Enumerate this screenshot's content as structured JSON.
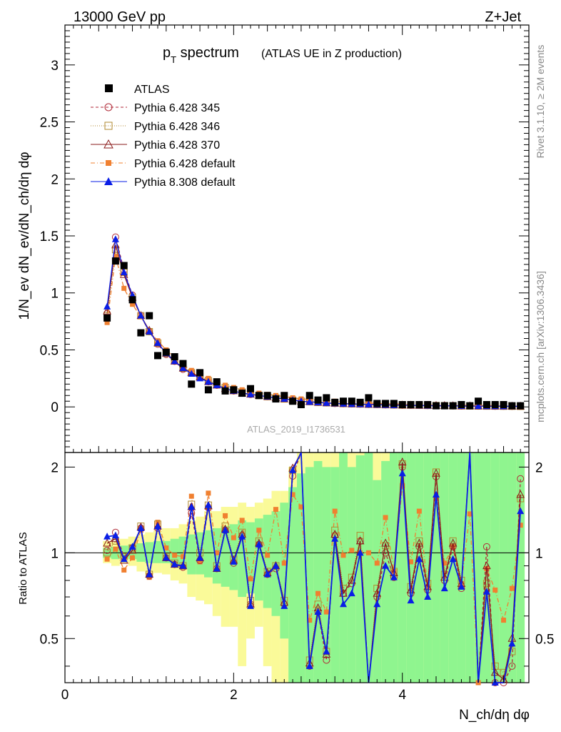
{
  "chart_data": {
    "type": "scatter",
    "title": "p",
    "title_sub": "T",
    "title_rest": " spectrum",
    "subtitle": "(ATLAS UE in Z production)",
    "header_left": "13000 GeV pp",
    "header_right": "Z+Jet",
    "side_label_top": "Rivet 3.1.10, ≥ 2M events",
    "side_label_bottom": "mcplots.cern.ch [arXiv:1306.3436]",
    "analysis_id": "ATLAS_2019_I1736531",
    "ylabel": "1/N_ev dN_ev/dN_ch/dη dφ",
    "ratio_ylabel": "Ratio to ATLAS",
    "xlabel": "N_ch/dη dφ",
    "xlim": [
      0,
      5.5
    ],
    "ylim": [
      -0.4,
      3.35
    ],
    "ratio_ylim": [
      0.35,
      2.25
    ],
    "x_ticks": [
      "0",
      "2",
      "4"
    ],
    "y_ticks": [
      "0",
      "0.5",
      "1",
      "1.5",
      "2",
      "2.5",
      "3"
    ],
    "ratio_ticks": [
      "0.5",
      "1",
      "2"
    ],
    "x": [
      0.5,
      0.6,
      0.7,
      0.8,
      0.9,
      1.0,
      1.1,
      1.2,
      1.3,
      1.4,
      1.5,
      1.6,
      1.7,
      1.8,
      1.9,
      2.0,
      2.1,
      2.2,
      2.3,
      2.4,
      2.5,
      2.6,
      2.7,
      2.8,
      2.9,
      3.0,
      3.1,
      3.2,
      3.3,
      3.4,
      3.5,
      3.6,
      3.7,
      3.8,
      3.9,
      4.0,
      4.1,
      4.2,
      4.3,
      4.4,
      4.5,
      4.6,
      4.7,
      4.8,
      4.9,
      5.0,
      5.1,
      5.2,
      5.3,
      5.4
    ],
    "data": {
      "name": "ATLAS",
      "values": [
        0.78,
        1.28,
        1.24,
        0.94,
        0.65,
        0.8,
        0.45,
        0.48,
        0.44,
        0.38,
        0.2,
        0.3,
        0.15,
        0.22,
        0.14,
        0.15,
        0.12,
        0.16,
        0.1,
        0.1,
        0.07,
        0.1,
        0.05,
        0.02,
        0.1,
        0.06,
        0.08,
        0.04,
        0.05,
        0.05,
        0.04,
        0.08,
        0.03,
        0.03,
        0.03,
        0.02,
        0.02,
        0.02,
        0.02,
        0.01,
        0.01,
        0.01,
        0.02,
        0.01,
        0.05,
        0.02,
        0.02,
        0.02,
        0.01,
        0.01
      ]
    },
    "series": [
      {
        "name": "Pythia 6.428 345",
        "color": "#b02a37",
        "values": [
          0.82,
          1.49,
          1.2,
          0.98,
          0.8,
          0.66,
          0.55,
          0.46,
          0.4,
          0.33,
          0.3,
          0.26,
          0.22,
          0.19,
          0.16,
          0.14,
          0.12,
          0.11,
          0.1,
          0.09,
          0.08,
          0.07,
          0.06,
          0.05,
          0.045,
          0.04,
          0.035,
          0.03,
          0.028,
          0.026,
          0.024,
          0.022,
          0.02,
          0.018,
          0.016,
          0.015,
          0.014,
          0.013,
          0.012,
          0.011,
          0.01,
          0.009,
          0.008,
          0.008,
          0.007,
          0.007,
          0.006,
          0.006,
          0.005,
          0.005
        ]
      },
      {
        "name": "Pythia 6.428 346",
        "color": "#b08a30",
        "values": [
          0.8,
          1.38,
          1.18,
          0.96,
          0.8,
          0.66,
          0.56,
          0.47,
          0.41,
          0.34,
          0.3,
          0.27,
          0.23,
          0.2,
          0.17,
          0.15,
          0.13,
          0.12,
          0.1,
          0.09,
          0.08,
          0.07,
          0.06,
          0.05,
          0.046,
          0.04,
          0.036,
          0.032,
          0.029,
          0.027,
          0.025,
          0.023,
          0.021,
          0.019,
          0.017,
          0.016,
          0.015,
          0.014,
          0.013,
          0.012,
          0.011,
          0.01,
          0.009,
          0.008,
          0.008,
          0.007,
          0.007,
          0.006,
          0.006,
          0.005
        ]
      },
      {
        "name": "Pythia 6.428 370",
        "color": "#8a1a1a",
        "values": [
          0.84,
          1.42,
          1.16,
          0.96,
          0.8,
          0.67,
          0.56,
          0.47,
          0.4,
          0.34,
          0.3,
          0.26,
          0.22,
          0.19,
          0.16,
          0.14,
          0.12,
          0.11,
          0.1,
          0.09,
          0.08,
          0.07,
          0.06,
          0.05,
          0.045,
          0.04,
          0.035,
          0.031,
          0.028,
          0.026,
          0.024,
          0.022,
          0.02,
          0.018,
          0.016,
          0.015,
          0.014,
          0.013,
          0.012,
          0.011,
          0.01,
          0.009,
          0.008,
          0.008,
          0.007,
          0.007,
          0.006,
          0.006,
          0.005,
          0.005
        ]
      },
      {
        "name": "Pythia 6.428 default",
        "color": "#f08030",
        "values": [
          0.74,
          1.32,
          1.04,
          0.9,
          0.79,
          0.66,
          0.58,
          0.5,
          0.43,
          0.37,
          0.32,
          0.28,
          0.25,
          0.22,
          0.19,
          0.17,
          0.15,
          0.13,
          0.12,
          0.11,
          0.1,
          0.09,
          0.08,
          0.07,
          0.065,
          0.06,
          0.055,
          0.05,
          0.045,
          0.04,
          0.037,
          0.034,
          0.031,
          0.028,
          0.026,
          0.024,
          0.022,
          0.02,
          0.019,
          0.018,
          0.017,
          0.016,
          0.015,
          0.014,
          0.013,
          0.012,
          0.012,
          0.011,
          0.011,
          0.01
        ]
      },
      {
        "name": "Pythia 8.308 default",
        "color": "#0a1ee6",
        "values": [
          0.88,
          1.47,
          1.18,
          0.98,
          0.8,
          0.66,
          0.56,
          0.47,
          0.4,
          0.34,
          0.29,
          0.25,
          0.22,
          0.19,
          0.16,
          0.14,
          0.12,
          0.11,
          0.1,
          0.09,
          0.08,
          0.07,
          0.06,
          0.05,
          0.044,
          0.039,
          0.034,
          0.03,
          0.027,
          0.025,
          0.023,
          0.021,
          0.019,
          0.017,
          0.015,
          0.014,
          0.013,
          0.012,
          0.011,
          0.01,
          0.009,
          0.009,
          0.008,
          0.007,
          0.007,
          0.006,
          0.006,
          0.005,
          0.005,
          0.005
        ]
      }
    ],
    "ratio": {
      "series": [
        [
          1.02,
          1.18,
          0.97,
          1.04,
          1.22,
          0.83,
          1.22,
          0.96,
          0.91,
          0.89,
          1.38,
          0.94,
          1.44,
          0.88,
          1.2,
          0.92,
          1.15,
          0.66,
          1.07,
          0.84,
          0.88,
          0.66,
          1.86,
          2.45,
          0.4,
          0.62,
          0.42,
          1.15,
          0.72,
          0.78,
          1.1,
          0.3,
          0.7,
          1.0,
          0.82,
          2.0,
          0.72,
          1.05,
          0.74,
          1.85,
          0.8,
          1.05,
          0.75,
          2.8,
          0.3,
          1.05,
          0.35,
          0.35,
          0.4,
          1.82
        ],
        [
          1.0,
          1.1,
          0.97,
          1.04,
          1.24,
          0.84,
          1.26,
          0.97,
          0.92,
          0.9,
          1.48,
          1.0,
          1.47,
          0.9,
          1.24,
          0.95,
          1.18,
          0.68,
          1.1,
          0.86,
          0.9,
          0.68,
          1.95,
          2.5,
          0.42,
          0.66,
          0.45,
          1.2,
          0.75,
          0.82,
          1.15,
          0.32,
          0.75,
          1.06,
          0.86,
          2.05,
          0.76,
          1.1,
          0.78,
          1.92,
          0.84,
          1.1,
          0.8,
          2.9,
          0.3,
          0.78,
          0.4,
          0.38,
          0.45,
          1.55
        ],
        [
          1.08,
          1.12,
          0.94,
          1.02,
          1.23,
          0.84,
          1.24,
          0.96,
          0.91,
          0.9,
          1.45,
          0.96,
          1.46,
          0.88,
          1.21,
          0.94,
          1.16,
          0.66,
          1.08,
          0.85,
          0.9,
          0.67,
          1.98,
          2.48,
          0.41,
          0.64,
          0.44,
          1.16,
          0.72,
          0.8,
          1.1,
          0.31,
          0.72,
          1.08,
          0.85,
          2.08,
          0.74,
          1.08,
          0.76,
          1.9,
          0.82,
          1.08,
          0.78,
          2.9,
          0.3,
          0.9,
          0.38,
          0.36,
          0.5,
          1.6
        ],
        [
          0.95,
          1.03,
          0.87,
          0.96,
          1.2,
          0.82,
          1.28,
          1.04,
          0.98,
          0.97,
          1.58,
          0.93,
          1.62,
          1.0,
          1.35,
          1.13,
          1.3,
          0.81,
          1.2,
          0.98,
          1.42,
          0.92,
          1.6,
          1.45,
          0.58,
          0.72,
          0.62,
          1.4,
          0.98,
          1.02,
          1.0,
          1.0,
          0.92,
          1.33,
          0.86,
          1.72,
          0.93,
          1.4,
          0.76,
          1.55,
          0.92,
          1.05,
          0.78,
          1.37,
          0.35,
          0.88,
          0.74,
          0.58,
          0.75,
          1.25
        ],
        [
          1.14,
          1.15,
          0.95,
          1.05,
          1.22,
          0.84,
          1.24,
          0.96,
          0.91,
          0.9,
          1.45,
          0.96,
          1.47,
          0.88,
          1.2,
          0.93,
          1.14,
          0.65,
          1.07,
          0.84,
          0.9,
          0.65,
          1.95,
          2.4,
          0.4,
          0.62,
          0.45,
          1.12,
          0.66,
          0.72,
          1.0,
          0.28,
          0.66,
          0.9,
          0.82,
          1.9,
          0.68,
          0.95,
          0.7,
          1.6,
          0.75,
          0.95,
          0.76,
          2.7,
          0.28,
          0.73,
          0.35,
          0.34,
          0.48,
          1.4
        ]
      ],
      "band_yellow": [
        [
          0.92,
          1.1
        ],
        [
          0.9,
          1.1
        ],
        [
          0.92,
          1.12
        ],
        [
          0.9,
          1.14
        ],
        [
          0.86,
          1.16
        ],
        [
          0.84,
          1.18
        ],
        [
          0.85,
          1.2
        ],
        [
          0.84,
          1.22
        ],
        [
          0.8,
          1.22
        ],
        [
          0.78,
          1.26
        ],
        [
          0.7,
          1.3
        ],
        [
          0.68,
          1.34
        ],
        [
          0.66,
          1.4
        ],
        [
          0.6,
          1.4
        ],
        [
          0.55,
          1.45
        ],
        [
          0.55,
          1.45
        ],
        [
          0.4,
          1.5
        ],
        [
          0.5,
          1.45
        ],
        [
          0.55,
          1.5
        ],
        [
          0.4,
          1.55
        ],
        [
          0.35,
          1.65
        ],
        [
          0.35,
          1.65
        ],
        [
          0.35,
          2.0
        ],
        [
          0.35,
          2.3
        ],
        [
          0.35,
          2.3
        ],
        [
          0.35,
          2.3
        ],
        [
          0.35,
          2.3
        ],
        [
          0.35,
          2.3
        ],
        [
          0.35,
          2.3
        ],
        [
          0.35,
          2.3
        ],
        [
          0.35,
          2.3
        ],
        [
          0.35,
          2.3
        ],
        [
          0.35,
          2.3
        ],
        [
          0.35,
          2.3
        ],
        [
          0.35,
          2.3
        ],
        [
          0.35,
          2.3
        ],
        [
          0.35,
          2.3
        ],
        [
          0.35,
          2.3
        ],
        [
          0.35,
          2.3
        ],
        [
          0.35,
          2.3
        ],
        [
          0.35,
          2.3
        ],
        [
          0.35,
          2.3
        ],
        [
          0.35,
          2.3
        ],
        [
          0.35,
          2.3
        ],
        [
          0.35,
          2.3
        ],
        [
          0.35,
          2.3
        ],
        [
          0.35,
          2.3
        ],
        [
          0.35,
          2.3
        ],
        [
          0.35,
          2.3
        ],
        [
          0.35,
          2.3
        ]
      ],
      "band_green": [
        [
          0.96,
          1.04
        ],
        [
          0.95,
          1.05
        ],
        [
          0.96,
          1.06
        ],
        [
          0.95,
          1.07
        ],
        [
          0.93,
          1.08
        ],
        [
          0.92,
          1.09
        ],
        [
          0.92,
          1.1
        ],
        [
          0.92,
          1.1
        ],
        [
          0.9,
          1.12
        ],
        [
          0.88,
          1.14
        ],
        [
          0.84,
          1.16
        ],
        [
          0.84,
          1.18
        ],
        [
          0.82,
          1.2
        ],
        [
          0.78,
          1.22
        ],
        [
          0.76,
          1.24
        ],
        [
          0.74,
          1.26
        ],
        [
          0.7,
          1.3
        ],
        [
          0.72,
          1.28
        ],
        [
          0.68,
          1.32
        ],
        [
          0.64,
          1.36
        ],
        [
          0.6,
          1.4
        ],
        [
          0.5,
          1.5
        ],
        [
          0.35,
          1.7
        ],
        [
          0.35,
          1.9
        ],
        [
          0.35,
          2.0
        ],
        [
          0.35,
          2.1
        ],
        [
          0.35,
          2.0
        ],
        [
          0.35,
          2.0
        ],
        [
          0.35,
          2.3
        ],
        [
          0.35,
          2.0
        ],
        [
          0.35,
          2.2
        ],
        [
          0.35,
          2.3
        ],
        [
          0.35,
          1.8
        ],
        [
          0.35,
          2.1
        ],
        [
          0.35,
          2.3
        ],
        [
          0.35,
          2.3
        ],
        [
          0.35,
          2.3
        ],
        [
          0.35,
          2.3
        ],
        [
          0.35,
          2.3
        ],
        [
          0.35,
          2.3
        ],
        [
          0.35,
          2.3
        ],
        [
          0.35,
          2.3
        ],
        [
          0.35,
          2.3
        ],
        [
          0.35,
          2.3
        ],
        [
          0.35,
          2.3
        ],
        [
          0.35,
          2.3
        ],
        [
          0.35,
          2.3
        ],
        [
          0.35,
          2.3
        ],
        [
          0.35,
          2.3
        ],
        [
          0.35,
          2.3
        ]
      ]
    },
    "legend_position": "top-left"
  },
  "colors": {
    "data": "#000000",
    "band_green": "#8ff58f",
    "band_yellow": "#fafa99",
    "side_text": "#888888"
  }
}
